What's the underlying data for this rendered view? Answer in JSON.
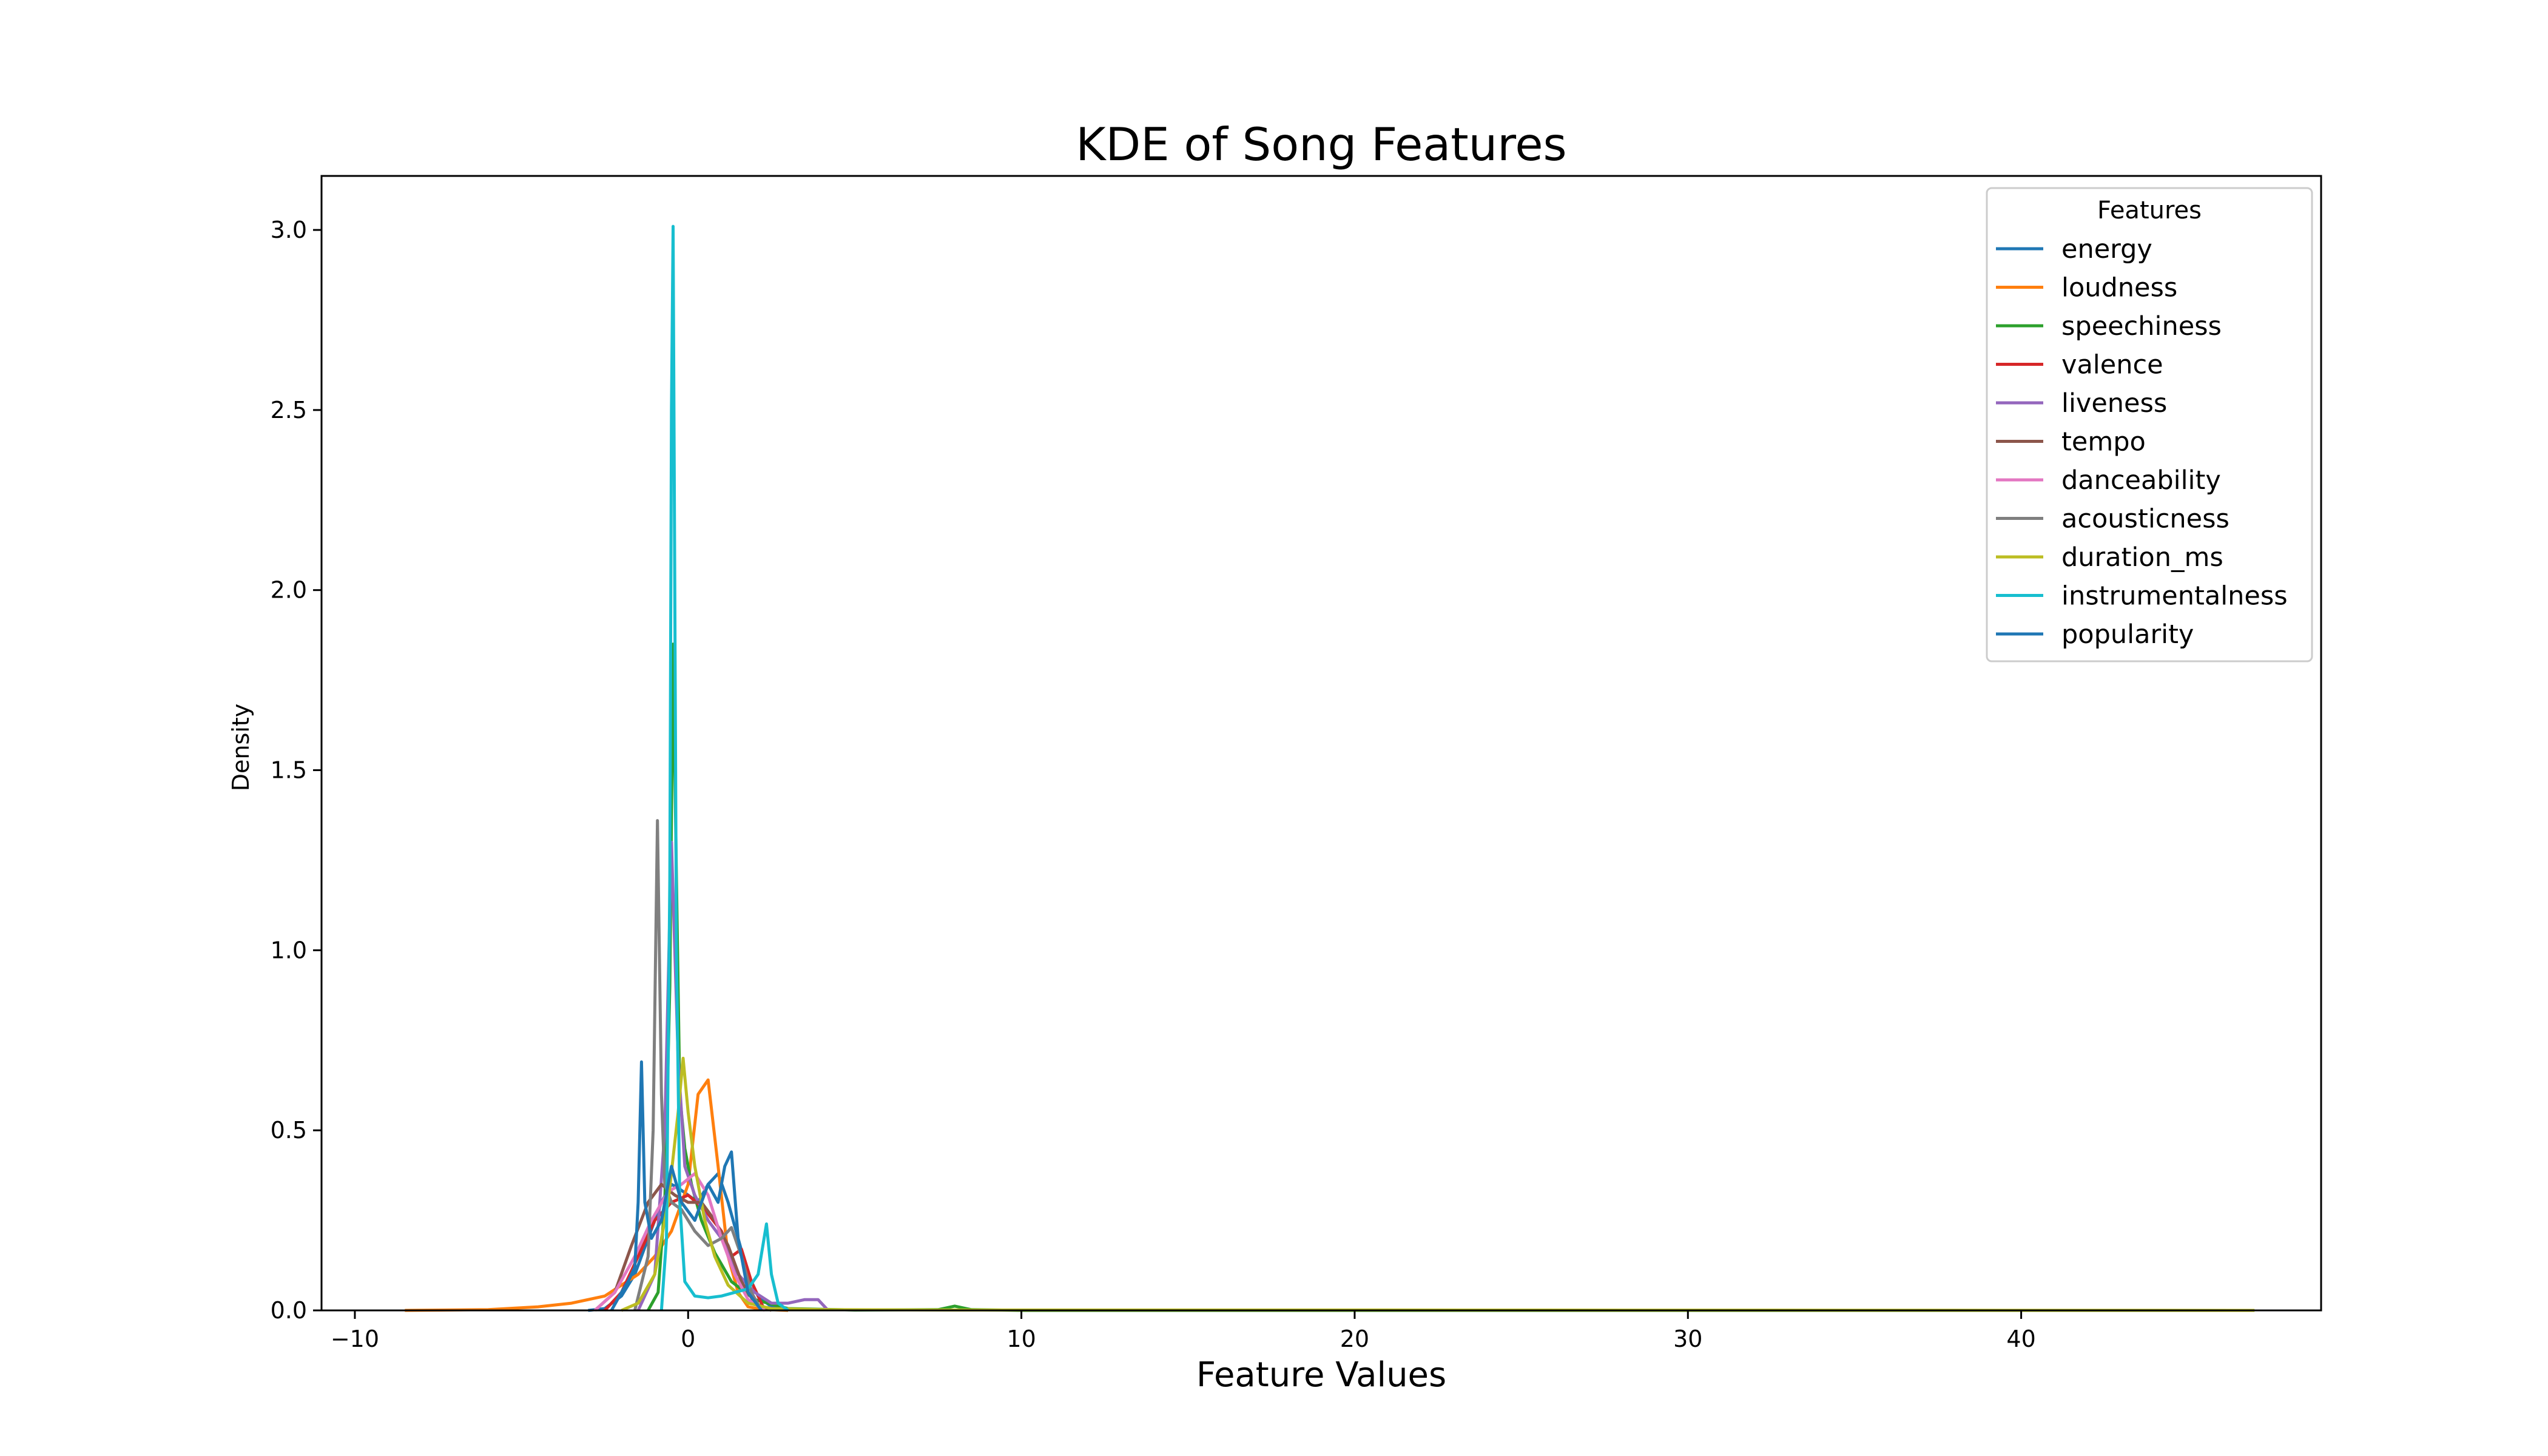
{
  "chart_data": {
    "type": "line",
    "title": "KDE of Song Features",
    "xlabel": "Feature Values",
    "ylabel": "Density",
    "xlim": [
      -11,
      49
    ],
    "ylim": [
      0,
      3.15
    ],
    "xticks": [
      -10,
      0,
      10,
      20,
      30,
      40
    ],
    "xtick_labels": [
      "−10",
      "0",
      "10",
      "20",
      "30",
      "40"
    ],
    "yticks": [
      0.0,
      0.5,
      1.0,
      1.5,
      2.0,
      2.5,
      3.0
    ],
    "ytick_labels": [
      "0.0",
      "0.5",
      "1.0",
      "1.5",
      "2.0",
      "2.5",
      "3.0"
    ],
    "grid": false,
    "legend": {
      "title": "Features",
      "placement": "top-right"
    },
    "series": [
      {
        "name": "energy",
        "color": "#1f77b4",
        "x": [
          -3,
          -2.5,
          -2,
          -1.6,
          -1.2,
          -0.8,
          -0.5,
          -0.3,
          0,
          0.3,
          0.6,
          0.9,
          1.2,
          1.5,
          1.8,
          2.1,
          2.5,
          3
        ],
        "y": [
          0,
          0.005,
          0.04,
          0.1,
          0.2,
          0.3,
          0.35,
          0.34,
          0.32,
          0.3,
          0.35,
          0.38,
          0.3,
          0.2,
          0.1,
          0.04,
          0.01,
          0
        ]
      },
      {
        "name": "loudness",
        "color": "#ff7f0e",
        "x": [
          -8.5,
          -6,
          -4.5,
          -3.5,
          -2.5,
          -2,
          -1.5,
          -1,
          -0.5,
          0,
          0.3,
          0.6,
          0.9,
          1.2,
          1.5,
          1.8,
          2.2,
          3
        ],
        "y": [
          0,
          0.002,
          0.01,
          0.02,
          0.04,
          0.07,
          0.1,
          0.15,
          0.22,
          0.35,
          0.6,
          0.64,
          0.4,
          0.15,
          0.05,
          0.01,
          0.003,
          0
        ]
      },
      {
        "name": "speechiness",
        "color": "#2ca02c",
        "x": [
          -1.2,
          -0.9,
          -0.7,
          -0.55,
          -0.45,
          -0.35,
          -0.25,
          -0.1,
          0.1,
          0.4,
          0.8,
          1.3,
          2,
          3,
          5,
          7.5,
          8,
          8.5,
          10,
          20,
          47
        ],
        "y": [
          0,
          0.05,
          0.3,
          0.9,
          1.85,
          1.2,
          0.6,
          0.45,
          0.35,
          0.25,
          0.16,
          0.08,
          0.03,
          0.005,
          0.001,
          0.002,
          0.012,
          0.002,
          0,
          0,
          0
        ]
      },
      {
        "name": "valence",
        "color": "#d62728",
        "x": [
          -2.5,
          -2,
          -1.5,
          -1,
          -0.5,
          0,
          0.5,
          1,
          1.3,
          1.6,
          1.9,
          2.3
        ],
        "y": [
          0,
          0.05,
          0.15,
          0.25,
          0.3,
          0.32,
          0.28,
          0.22,
          0.15,
          0.17,
          0.08,
          0
        ]
      },
      {
        "name": "liveness",
        "color": "#9467bd",
        "x": [
          -1.5,
          -1,
          -0.7,
          -0.5,
          -0.3,
          -0.1,
          0.2,
          0.6,
          1,
          1.5,
          2,
          2.5,
          3,
          3.5,
          3.9,
          4.2
        ],
        "y": [
          0,
          0.1,
          0.5,
          1.3,
          0.7,
          0.4,
          0.32,
          0.25,
          0.2,
          0.1,
          0.05,
          0.02,
          0.02,
          0.03,
          0.03,
          0
        ]
      },
      {
        "name": "tempo",
        "color": "#8c564b",
        "x": [
          -2.8,
          -2.2,
          -1.7,
          -1.2,
          -0.8,
          -0.4,
          0,
          0.4,
          0.8,
          1.2,
          1.6,
          2,
          2.5
        ],
        "y": [
          0,
          0.05,
          0.18,
          0.3,
          0.35,
          0.32,
          0.3,
          0.3,
          0.25,
          0.18,
          0.08,
          0.02,
          0
        ]
      },
      {
        "name": "danceability",
        "color": "#e377c2",
        "x": [
          -2.8,
          -2.2,
          -1.6,
          -1.1,
          -0.6,
          -0.2,
          0.2,
          0.6,
          1,
          1.4,
          1.8,
          2.3
        ],
        "y": [
          0,
          0.05,
          0.15,
          0.25,
          0.33,
          0.35,
          0.38,
          0.32,
          0.2,
          0.1,
          0.03,
          0
        ]
      },
      {
        "name": "acousticness",
        "color": "#7f7f7f",
        "x": [
          -1.6,
          -1.2,
          -1.05,
          -0.92,
          -0.8,
          -0.7,
          -0.5,
          -0.2,
          0.2,
          0.6,
          1,
          1.3,
          1.6,
          1.9,
          2.2
        ],
        "y": [
          0,
          0.15,
          0.5,
          1.36,
          0.6,
          0.35,
          0.3,
          0.28,
          0.22,
          0.18,
          0.2,
          0.23,
          0.15,
          0.05,
          0
        ]
      },
      {
        "name": "duration_ms",
        "color": "#bcbd22",
        "x": [
          -2,
          -1.5,
          -1,
          -0.6,
          -0.3,
          -0.15,
          0,
          0.2,
          0.5,
          0.8,
          1.2,
          1.8,
          2.5,
          4,
          8,
          20,
          47
        ],
        "y": [
          0,
          0.02,
          0.1,
          0.3,
          0.55,
          0.7,
          0.55,
          0.4,
          0.25,
          0.15,
          0.07,
          0.02,
          0.005,
          0.002,
          0.001,
          0.001,
          0
        ]
      },
      {
        "name": "instrumentalness",
        "color": "#17becf",
        "x": [
          -0.8,
          -0.65,
          -0.55,
          -0.5,
          -0.45,
          -0.4,
          -0.35,
          -0.25,
          -0.1,
          0.2,
          0.6,
          1,
          1.4,
          1.8,
          2.1,
          2.35,
          2.5,
          2.7,
          3
        ],
        "y": [
          0,
          0.2,
          1.2,
          2.5,
          3.01,
          2.0,
          1.0,
          0.3,
          0.08,
          0.04,
          0.035,
          0.04,
          0.05,
          0.06,
          0.1,
          0.24,
          0.1,
          0.02,
          0
        ]
      },
      {
        "name": "popularity",
        "color": "#1f77b4",
        "x": [
          -2.3,
          -2,
          -1.8,
          -1.6,
          -1.5,
          -1.4,
          -1.3,
          -1.1,
          -0.8,
          -0.5,
          -0.2,
          0.2,
          0.6,
          0.9,
          1.1,
          1.3,
          1.5,
          1.8,
          2.2
        ],
        "y": [
          0,
          0.05,
          0.08,
          0.12,
          0.3,
          0.69,
          0.3,
          0.2,
          0.25,
          0.4,
          0.3,
          0.25,
          0.35,
          0.3,
          0.4,
          0.44,
          0.2,
          0.05,
          0
        ]
      }
    ]
  }
}
